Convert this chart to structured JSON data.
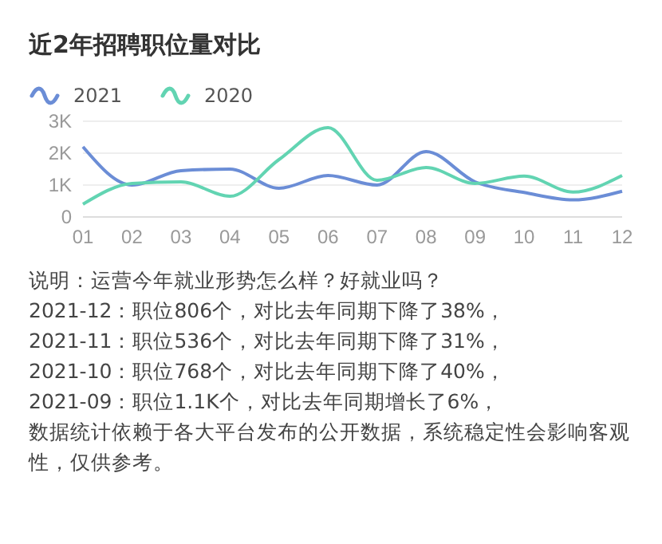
{
  "chart_data": {
    "type": "line",
    "title": "近2年招聘职位量对比",
    "categories": [
      "01",
      "02",
      "03",
      "04",
      "05",
      "06",
      "07",
      "08",
      "09",
      "10",
      "11",
      "12"
    ],
    "series": [
      {
        "name": "2021",
        "color": "#6b8dd6",
        "values": [
          2200,
          1000,
          1450,
          1500,
          900,
          1300,
          1000,
          2050,
          1100,
          768,
          536,
          806
        ]
      },
      {
        "name": "2020",
        "color": "#62d4b2",
        "values": [
          400,
          1050,
          1100,
          650,
          1800,
          2800,
          1150,
          1550,
          1050,
          1280,
          780,
          1300
        ]
      }
    ],
    "ylim": [
      0,
      3000
    ],
    "yticks": [
      0,
      {
        "value": 1000,
        "label": "1K"
      },
      {
        "value": 2000,
        "label": "2K"
      },
      {
        "value": 3000,
        "label": "3K"
      }
    ],
    "grid": "y",
    "legend": "top left",
    "marker": "none",
    "line_style": "solid",
    "annotations": [
      "说明：运营今年就业形势怎么样？好就业吗？",
      "2021-12：职位806个，对比去年同期下降了38%，",
      "2021-11：职位536个，对比去年同期下降了31%，",
      "2021-10：职位768个，对比去年同期下降了40%，",
      "2021-09：职位1.1K个，对比去年同期增长了6%，",
      "数据统计依赖于各大平台发布的公开数据，系统稳定性会影响客观性，仅供参考。"
    ]
  }
}
